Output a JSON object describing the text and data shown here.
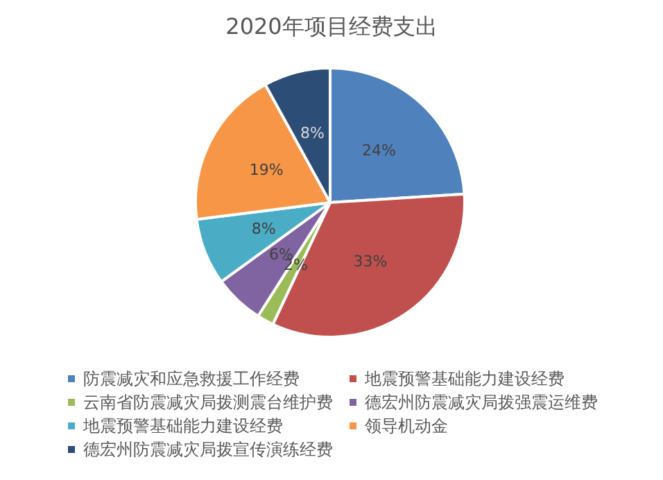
{
  "chart_data": {
    "type": "pie",
    "title": "2020年项目经费支出",
    "categories": [
      "防震减灾和应急救援工作经费",
      "地震预警基础能力建设经费",
      "云南省防震减灾局拨测震台维护费",
      "德宏州防震减灾局拨强震运维费",
      "地震预警基础能力建设经费",
      "领导机动金",
      "德宏州防震减灾局拨宣传演练经费"
    ],
    "values": [
      24,
      33,
      2,
      6,
      8,
      19,
      8
    ],
    "colors": [
      "#4f81bd",
      "#c0504d",
      "#9bbb59",
      "#8064a2",
      "#4bacc6",
      "#f79646",
      "#2c4d75"
    ],
    "value_labels": [
      "24%",
      "33%",
      "2%",
      "6%",
      "8%",
      "19%",
      "8%"
    ],
    "legend": "bottom"
  }
}
